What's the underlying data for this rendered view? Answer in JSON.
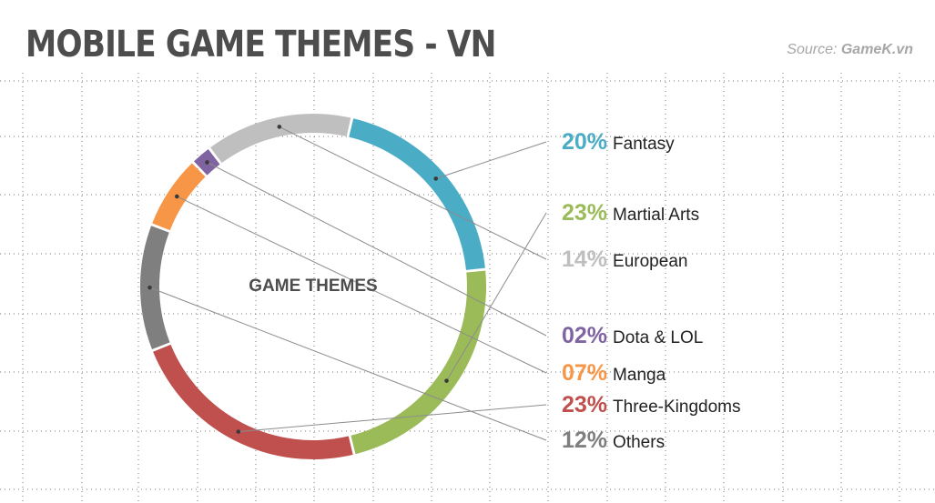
{
  "title": "MOBILE GAME THEMES - VN",
  "source": {
    "prefix": "Source: ",
    "name": "GameK.vn"
  },
  "chart_data": {
    "type": "pie",
    "center_label": "GAME THEMES",
    "legend_placement": "right",
    "series": [
      {
        "name": "Fantasy",
        "value": 20,
        "label": "20%",
        "color": "#4bacc6"
      },
      {
        "name": "Martial Arts",
        "value": 23,
        "label": "23%",
        "color": "#9bbb59"
      },
      {
        "name": "Three-Kingdoms",
        "value": 23,
        "label": "23%",
        "color": "#c0504d"
      },
      {
        "name": "Others",
        "value": 12,
        "label": "12%",
        "color": "#7f7f7f"
      },
      {
        "name": "Manga",
        "value": 7,
        "label": "07%",
        "color": "#f79646"
      },
      {
        "name": "Dota & LOL",
        "value": 2,
        "label": "02%",
        "color": "#8064a2"
      },
      {
        "name": "European",
        "value": 14,
        "label": "14%",
        "color": "#bfbfbf"
      }
    ],
    "legend_order": [
      "Fantasy",
      "Martial Arts",
      "European",
      "Dota & LOL",
      "Manga",
      "Three-Kingdoms",
      "Others"
    ]
  }
}
